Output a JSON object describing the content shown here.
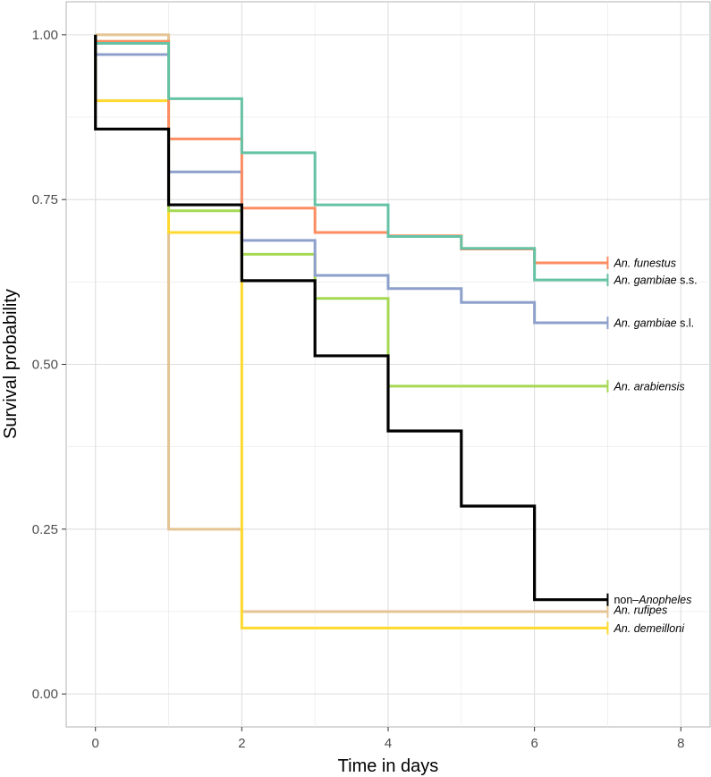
{
  "chart_data": {
    "type": "line",
    "step": true,
    "title": "",
    "xlabel": "Time in days",
    "ylabel": "Survival probability",
    "xlim": [
      -0.4,
      8.4
    ],
    "ylim": [
      -0.05,
      1.05
    ],
    "x_ticks": [
      0,
      2,
      4,
      6,
      8
    ],
    "x_tick_labels": [
      "0",
      "2",
      "4",
      "6",
      "8"
    ],
    "y_ticks": [
      0,
      0.25,
      0.5,
      0.75,
      1
    ],
    "y_tick_labels": [
      "0.00",
      "0.25",
      "0.50",
      "0.75",
      "1.00"
    ],
    "grid": true,
    "series": [
      {
        "name": "An. rufipes",
        "label_parts": [
          {
            "text": "An. rufipes",
            "italic": true
          }
        ],
        "color": "#E5C494",
        "times": [
          0,
          1,
          2,
          7
        ],
        "values": [
          1.0,
          0.25,
          0.125,
          0.125
        ]
      },
      {
        "name": "An. demeilloni",
        "label_parts": [
          {
            "text": "An. demeilloni",
            "italic": true
          }
        ],
        "color": "#FFD92F",
        "times": [
          0,
          1,
          2,
          7
        ],
        "values": [
          0.9,
          0.7,
          0.1,
          0.1
        ]
      },
      {
        "name": "An. arabiensis",
        "label_parts": [
          {
            "text": "An. arabiensis",
            "italic": true
          }
        ],
        "color": "#A6D854",
        "times": [
          0,
          1,
          2,
          3,
          4,
          7
        ],
        "values": [
          0.99,
          0.733,
          0.667,
          0.6,
          0.467,
          0.467
        ]
      },
      {
        "name": "An. gambiae s.l.",
        "label_parts": [
          {
            "text": "An. gambiae",
            "italic": true
          },
          {
            "text": " s.l.",
            "italic": false
          }
        ],
        "color": "#8DA0CB",
        "times": [
          0,
          1,
          2,
          3,
          4,
          5,
          6,
          7
        ],
        "values": [
          0.97,
          0.792,
          0.688,
          0.635,
          0.615,
          0.594,
          0.563,
          0.563
        ]
      },
      {
        "name": "An. funestus",
        "label_parts": [
          {
            "text": "An. funestus",
            "italic": true
          }
        ],
        "color": "#FC8D62",
        "times": [
          0,
          1,
          2,
          3,
          4,
          5,
          6,
          7
        ],
        "values": [
          0.99,
          0.842,
          0.737,
          0.7,
          0.695,
          0.675,
          0.654,
          0.654
        ]
      },
      {
        "name": "An. gambiae s.s.",
        "label_parts": [
          {
            "text": "An. gambiae",
            "italic": true
          },
          {
            "text": " s.s.",
            "italic": false
          }
        ],
        "color": "#66C2A5",
        "times": [
          0,
          1,
          2,
          3,
          4,
          5,
          6,
          7
        ],
        "values": [
          0.987,
          0.903,
          0.821,
          0.742,
          0.694,
          0.676,
          0.628,
          0.628
        ]
      },
      {
        "name": "non-Anopheles",
        "label_parts": [
          {
            "text": "non–",
            "italic": false
          },
          {
            "text": "Anopheles",
            "italic": true
          }
        ],
        "color": "#000000",
        "times": [
          0,
          1,
          2,
          3,
          4,
          5,
          6,
          7
        ],
        "values": [
          0.857,
          0.742,
          0.627,
          0.513,
          0.399,
          0.285,
          0.143,
          0.143
        ]
      }
    ]
  }
}
